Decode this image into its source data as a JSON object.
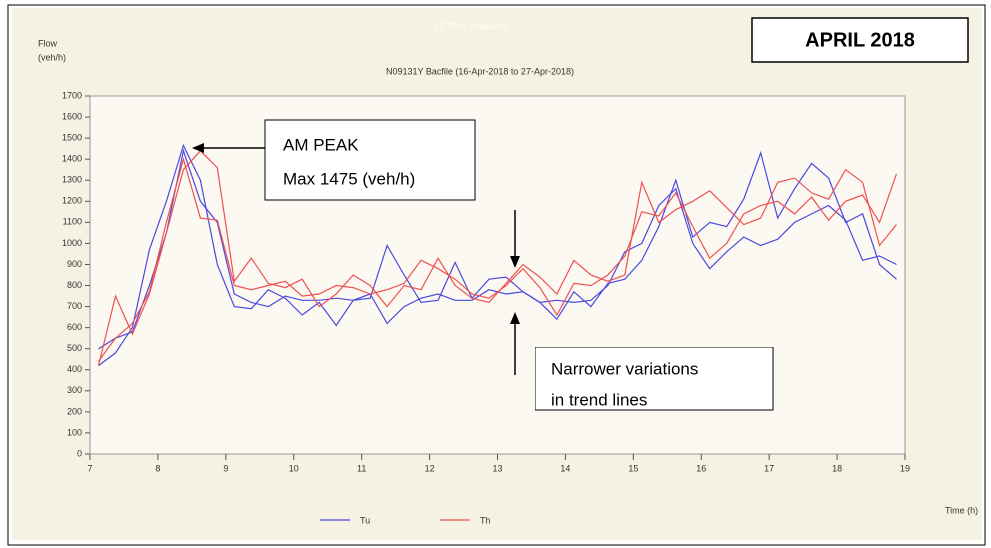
{
  "chart_data": {
    "type": "line",
    "title": "N09131Y Bacfile (16-Apr-2018 to 27-Apr-2018)",
    "source": "ASTRID database",
    "y_label": [
      "Flow",
      "(veh/h)"
    ],
    "x_label": "Time (h)",
    "annotations": [
      "APRIL 2018",
      "AM PEAK",
      "Max 1475 (veh/h)",
      "Narrower variations",
      "in trend lines"
    ],
    "x": [
      7.125,
      7.375,
      7.625,
      7.875,
      8.125,
      8.375,
      8.625,
      8.875,
      9.125,
      9.375,
      9.625,
      9.875,
      10.125,
      10.375,
      10.625,
      10.875,
      11.125,
      11.375,
      11.625,
      11.875,
      12.125,
      12.375,
      12.625,
      12.875,
      13.125,
      13.375,
      13.625,
      13.875,
      14.125,
      14.375,
      14.625,
      14.875,
      15.125,
      15.375,
      15.625,
      15.875,
      16.125,
      16.375,
      16.625,
      16.875,
      17.125,
      17.375,
      17.625,
      17.875,
      18.125,
      18.375,
      18.625,
      18.875
    ],
    "series": [
      {
        "name": "Tu",
        "color": "#4a4ae0",
        "values": [
          420,
          480,
          600,
          970,
          1200,
          1465,
          1300,
          900,
          700,
          690,
          780,
          740,
          660,
          720,
          610,
          730,
          760,
          620,
          700,
          740,
          760,
          730,
          730,
          780,
          760,
          770,
          720,
          640,
          770,
          700,
          810,
          830,
          920,
          1080,
          1300,
          1030,
          1100,
          1080,
          1210,
          1430,
          1120,
          1260,
          1380,
          1310,
          1100,
          1140,
          900,
          830
        ]
      },
      {
        "color": "#4a4ae0",
        "values": [
          500,
          550,
          580,
          800,
          1050,
          1440,
          1200,
          1100,
          760,
          720,
          700,
          750,
          730,
          730,
          740,
          730,
          740,
          990,
          850,
          720,
          730,
          910,
          740,
          830,
          840,
          770,
          720,
          730,
          720,
          730,
          800,
          960,
          1000,
          1180,
          1260,
          1000,
          880,
          960,
          1030,
          990,
          1020,
          1100,
          1140,
          1180,
          1110,
          920,
          940,
          900
        ]
      },
      {
        "name": "Th",
        "color": "#f05050",
        "values": [
          420,
          750,
          570,
          760,
          1050,
          1350,
          1440,
          1360,
          820,
          930,
          810,
          790,
          830,
          700,
          760,
          850,
          800,
          700,
          800,
          780,
          930,
          800,
          740,
          720,
          810,
          900,
          840,
          760,
          920,
          850,
          820,
          850,
          1290,
          1100,
          1160,
          1200,
          1250,
          1170,
          1090,
          1120,
          1290,
          1310,
          1240,
          1210,
          1350,
          1290,
          990,
          1090
        ]
      },
      {
        "color": "#f05050",
        "values": [
          440,
          550,
          620,
          770,
          1100,
          1400,
          1120,
          1110,
          800,
          780,
          800,
          820,
          750,
          760,
          800,
          790,
          760,
          780,
          810,
          920,
          880,
          830,
          760,
          740,
          800,
          880,
          790,
          660,
          810,
          800,
          850,
          940,
          1150,
          1130,
          1240,
          1080,
          930,
          1000,
          1140,
          1180,
          1200,
          1140,
          1220,
          1110,
          1200,
          1230,
          1100,
          1330
        ]
      }
    ],
    "xlim": [
      7,
      19
    ],
    "xticks": [
      7,
      8,
      9,
      10,
      11,
      12,
      13,
      14,
      15,
      16,
      17,
      18,
      19
    ],
    "ylim": [
      0,
      1700
    ],
    "yticks": [
      0,
      100,
      200,
      300,
      400,
      500,
      600,
      700,
      800,
      900,
      1000,
      1100,
      1200,
      1300,
      1400,
      1500,
      1600,
      1700
    ],
    "grid": false,
    "legend": "bottom"
  }
}
